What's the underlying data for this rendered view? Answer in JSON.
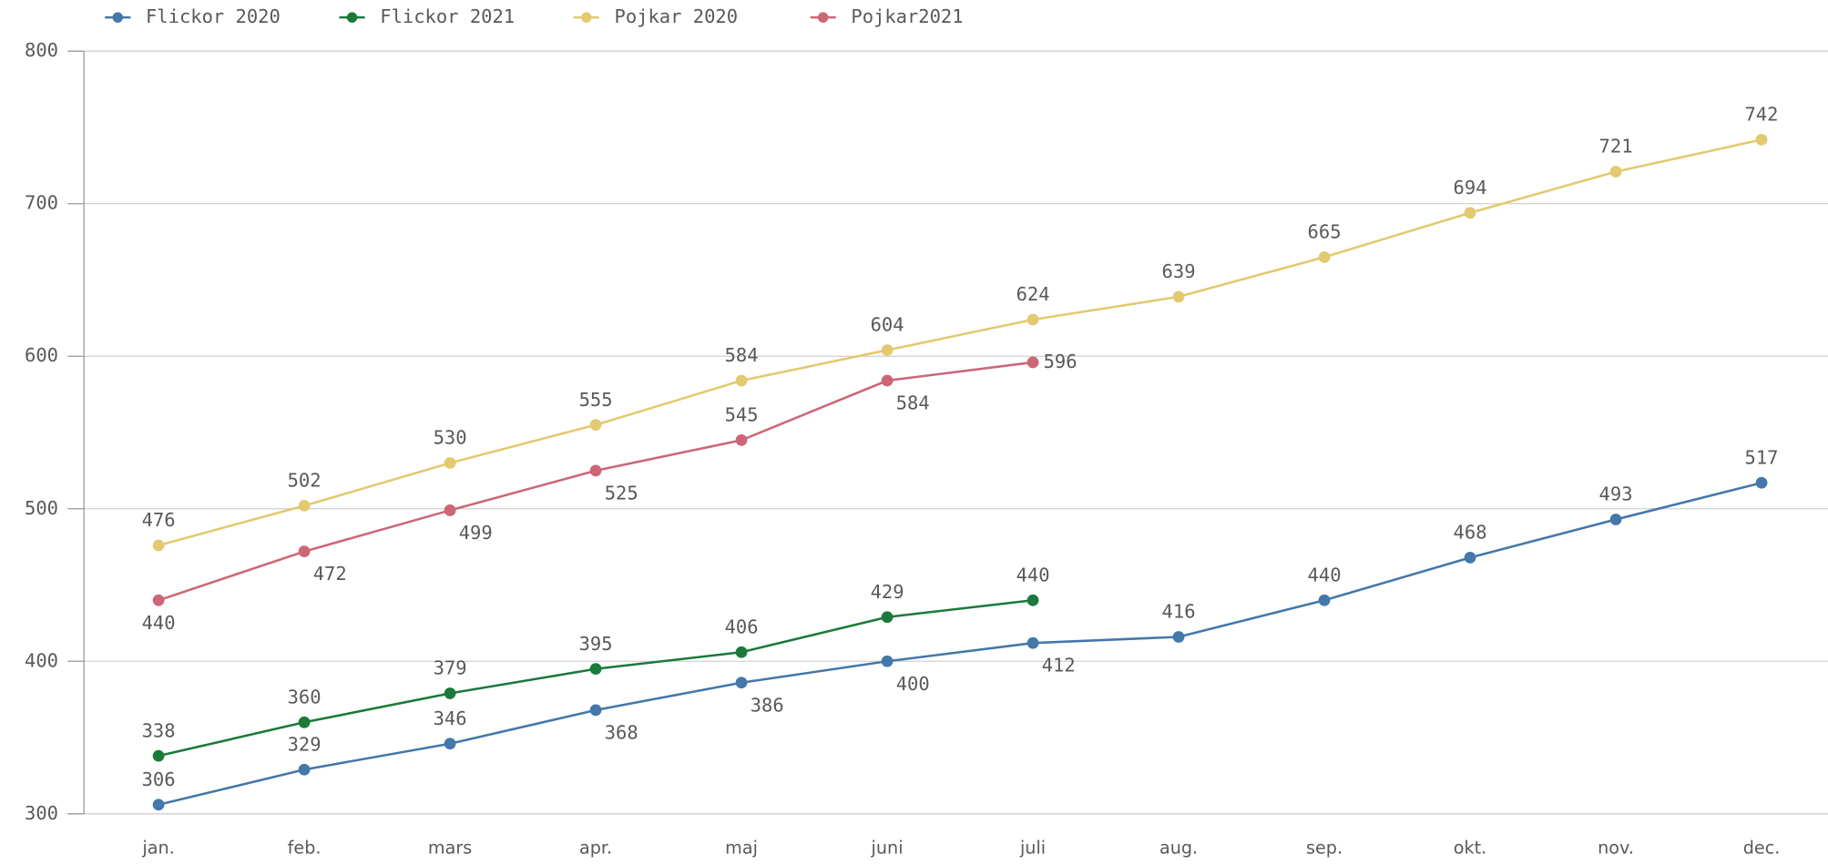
{
  "chart_data": {
    "type": "line",
    "categories": [
      "jan.",
      "feb.",
      "mars",
      "apr.",
      "maj",
      "juni",
      "juli",
      "aug.",
      "sep.",
      "okt.",
      "nov.",
      "dec."
    ],
    "series": [
      {
        "name": "Flickor 2020",
        "color": "#4477aa",
        "values": [
          306,
          329,
          346,
          368,
          386,
          400,
          412,
          416,
          440,
          468,
          493,
          517
        ]
      },
      {
        "name": "Flickor 2021",
        "color": "#1a7a3a",
        "values": [
          338,
          360,
          379,
          395,
          406,
          429,
          440,
          null,
          null,
          null,
          null,
          null
        ]
      },
      {
        "name": "Pojkar 2020",
        "color": "#e3c96f",
        "values": [
          476,
          502,
          530,
          555,
          584,
          604,
          624,
          639,
          665,
          694,
          721,
          742
        ]
      },
      {
        "name": "Pojkar2021",
        "color": "#cc6677",
        "values": [
          440,
          472,
          499,
          525,
          545,
          584,
          596,
          null,
          null,
          null,
          null,
          null
        ]
      }
    ],
    "ylim": [
      300,
      800
    ],
    "yticks": [
      300,
      400,
      500,
      600,
      700,
      800
    ],
    "grid": true,
    "legend": "top-left"
  }
}
